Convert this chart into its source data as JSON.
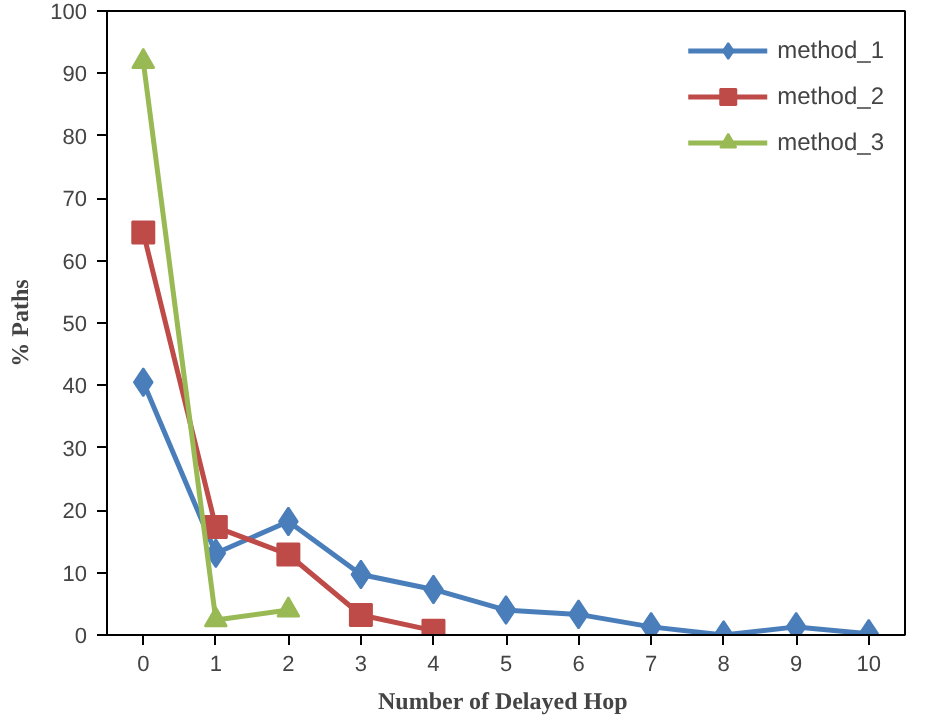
{
  "chart_data": {
    "type": "line",
    "xlabel": "Number  of Delayed Hop",
    "ylabel": "% Paths",
    "categories": [
      "0",
      "1",
      "2",
      "3",
      "4",
      "5",
      "6",
      "7",
      "8",
      "9",
      "10"
    ],
    "ylim": [
      0,
      100
    ],
    "yticks": [
      0,
      10,
      20,
      30,
      40,
      50,
      60,
      70,
      80,
      90,
      100
    ],
    "grid": false,
    "legend": "top right",
    "series": [
      {
        "name": "method_1",
        "color": "#4a7ebb",
        "marker": "diamond",
        "values": [
          40.5,
          13.1,
          18.2,
          9.7,
          7.3,
          4.0,
          3.3,
          1.3,
          0,
          1.3,
          0.2
        ]
      },
      {
        "name": "method_2",
        "color": "#be4b48",
        "marker": "square",
        "values": [
          64.5,
          17.3,
          12.9,
          3.2,
          0.7,
          null,
          null,
          null,
          null,
          null,
          null
        ]
      },
      {
        "name": "method_3",
        "color": "#98b954",
        "marker": "triangle",
        "values": [
          91.9,
          2.4,
          4.0,
          null,
          null,
          null,
          null,
          null,
          null,
          null,
          null
        ]
      }
    ]
  }
}
